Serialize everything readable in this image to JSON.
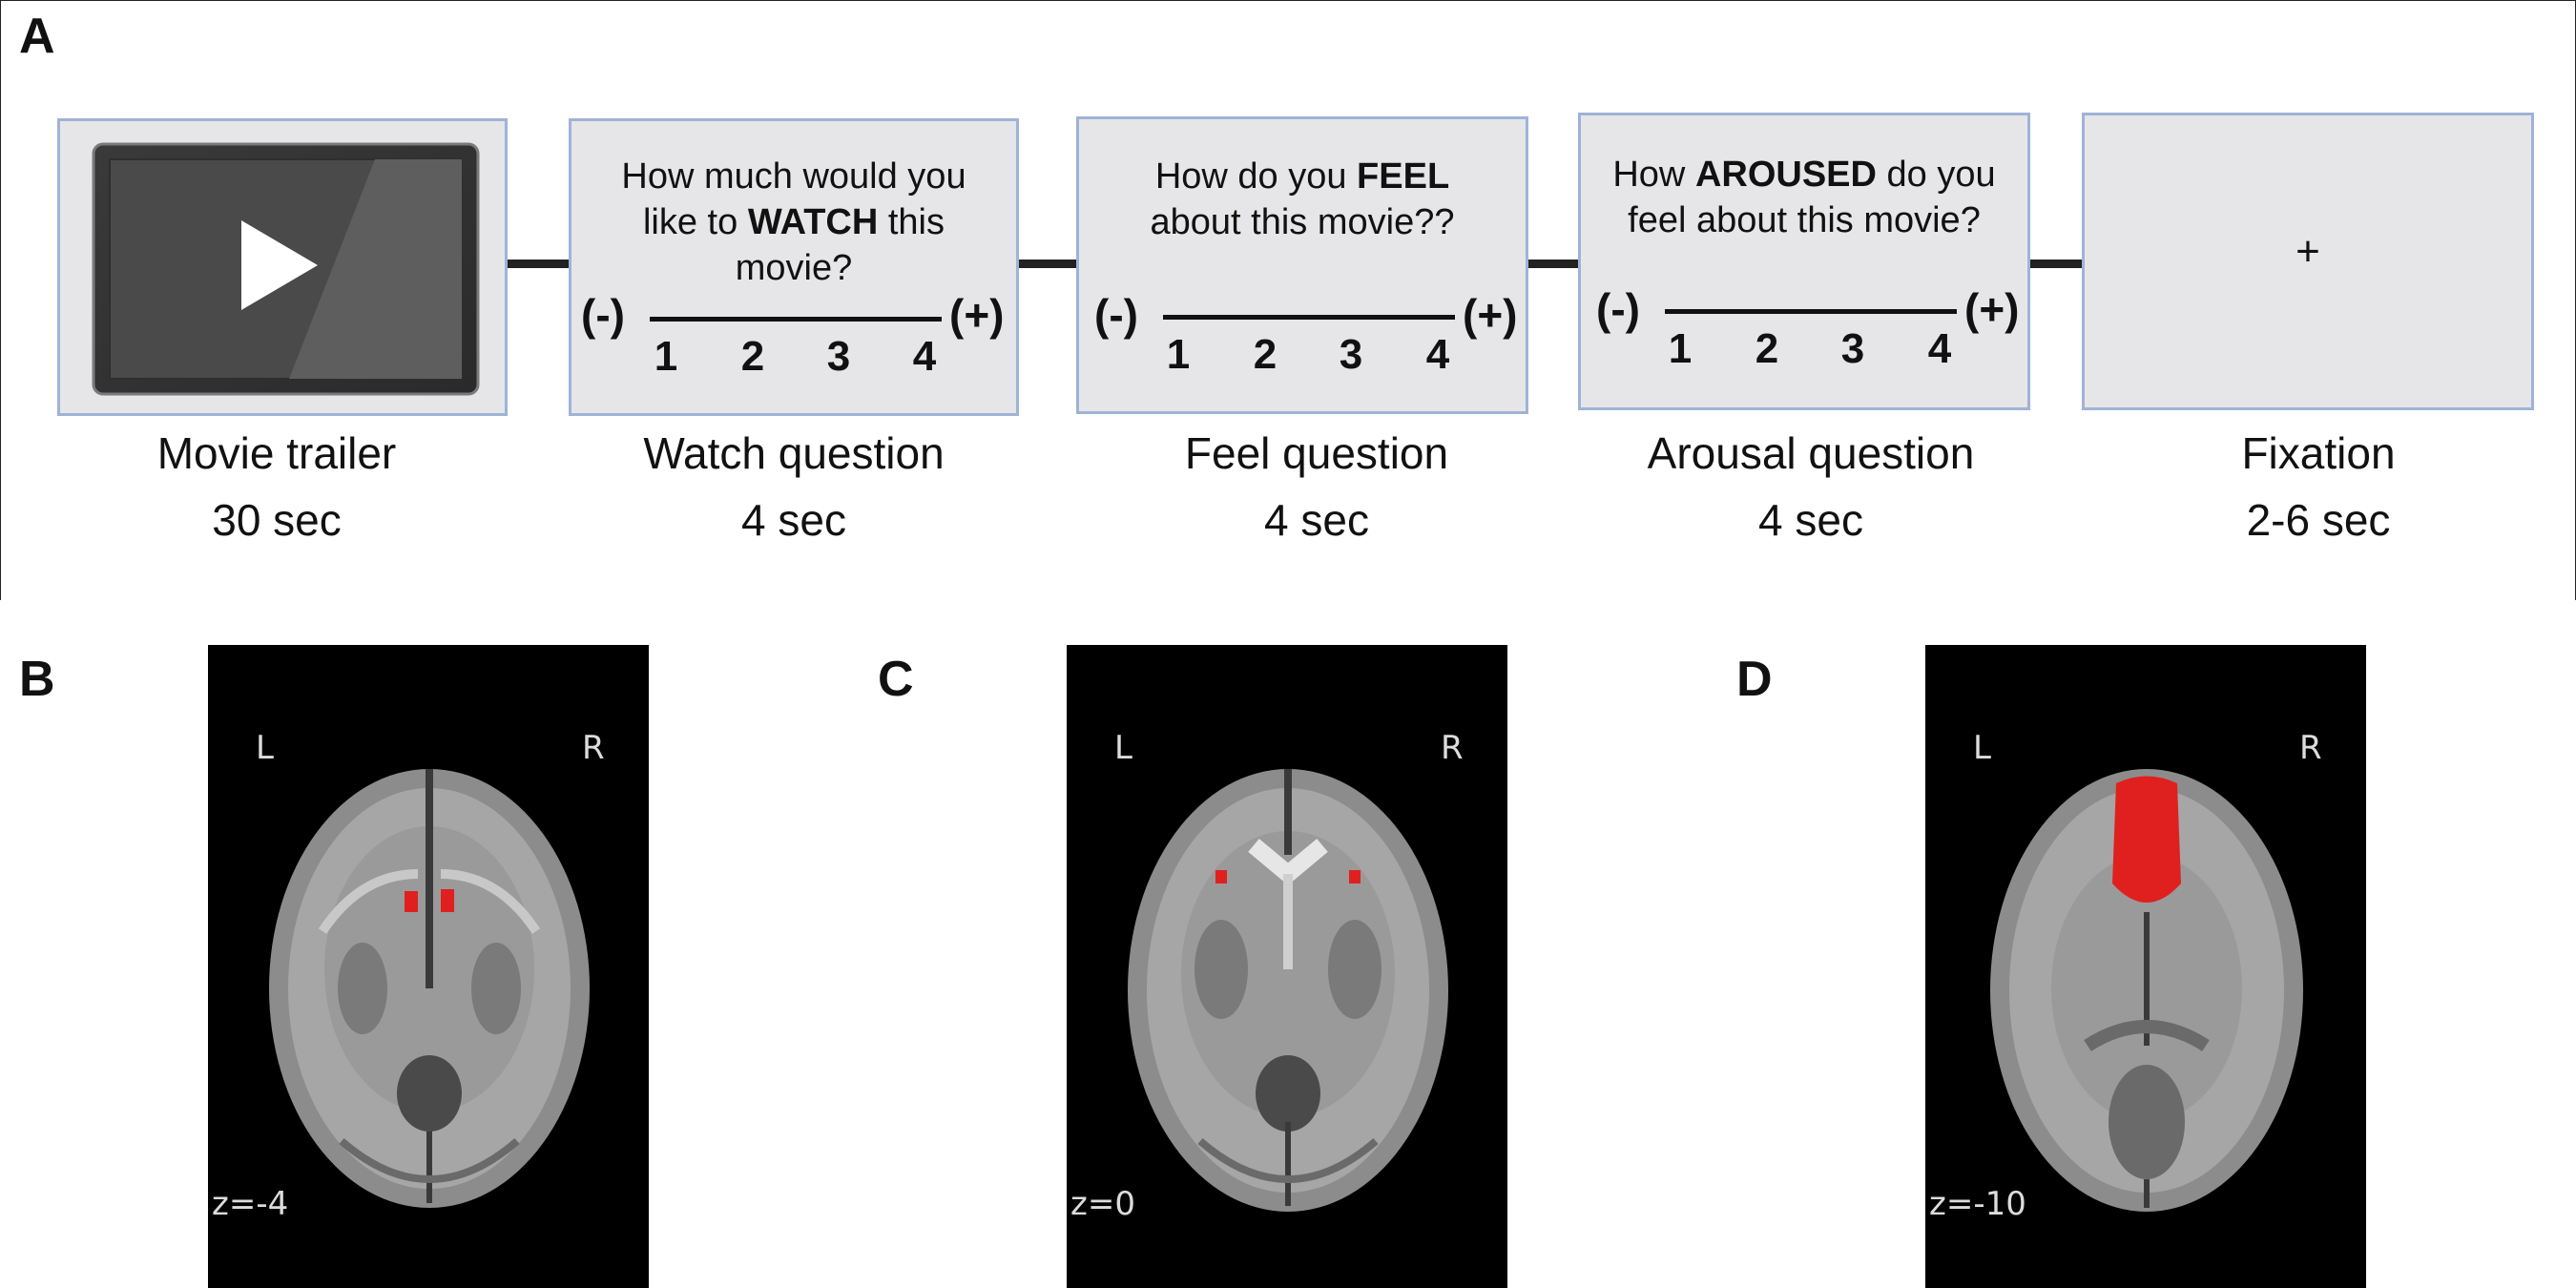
{
  "panels": {
    "a": "A",
    "b": "B",
    "c": "C",
    "d": "D"
  },
  "stages": [
    {
      "name": "Movie trailer",
      "duration": "30 sec"
    },
    {
      "name": "Watch question",
      "duration": "4 sec"
    },
    {
      "name": "Feel question",
      "duration": "4 sec"
    },
    {
      "name": "Arousal question",
      "duration": "4 sec"
    },
    {
      "name": "Fixation",
      "duration": "2-6 sec"
    }
  ],
  "questions": {
    "watch": {
      "pre": "How much would you",
      "line2_pre": "like to ",
      "bold": "WATCH",
      "line2_post": " this",
      "line3": "movie?"
    },
    "feel": {
      "line1_pre": "How do you ",
      "bold": "FEEL",
      "line2": "about this movie??"
    },
    "arousal": {
      "line1_pre": "How ",
      "bold": "AROUSED",
      "line1_post": " do you",
      "line2": "feel about this movie?"
    }
  },
  "scale": {
    "neg": "(-)",
    "pos": "(+)",
    "points": [
      "1",
      "2",
      "3",
      "4"
    ]
  },
  "fixation_symbol": "+",
  "brains": [
    {
      "left": "L",
      "right": "R",
      "z": "z=-4"
    },
    {
      "left": "L",
      "right": "R",
      "z": "z=0"
    },
    {
      "left": "L",
      "right": "R",
      "z": "z=-10"
    }
  ],
  "colors": {
    "box_fill": "#e6e6e8",
    "box_border": "#9fb3d6",
    "roi": "#e0201e",
    "brain_bg": "#000000"
  }
}
